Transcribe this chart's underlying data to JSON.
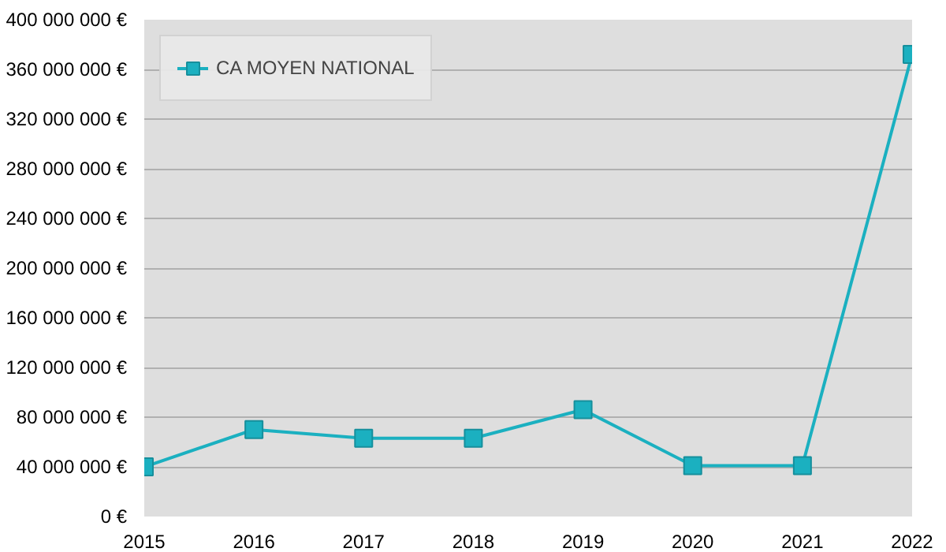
{
  "chart_data": {
    "type": "line",
    "x": [
      2015,
      2016,
      2017,
      2018,
      2019,
      2020,
      2021,
      2022
    ],
    "series": [
      {
        "name": "CA MOYEN NATIONAL",
        "color": "#1bb0c0",
        "values": [
          40000000,
          70000000,
          63000000,
          63000000,
          86000000,
          41000000,
          41000000,
          372000000
        ]
      }
    ],
    "xlim": [
      2015,
      2022
    ],
    "xticks": [
      2015,
      2016,
      2017,
      2018,
      2019,
      2020,
      2021,
      2022
    ],
    "ylim": [
      0,
      400000000
    ],
    "yticks": [
      {
        "value": 0,
        "label": "0 €"
      },
      {
        "value": 40000000,
        "label": "40 000 000 €"
      },
      {
        "value": 80000000,
        "label": "80 000 000 €"
      },
      {
        "value": 120000000,
        "label": "120 000 000 €"
      },
      {
        "value": 160000000,
        "label": "160 000 000 €"
      },
      {
        "value": 200000000,
        "label": "200 000 000 €"
      },
      {
        "value": 240000000,
        "label": "240 000 000 €"
      },
      {
        "value": 280000000,
        "label": "280 000 000 €"
      },
      {
        "value": 320000000,
        "label": "320 000 000 €"
      },
      {
        "value": 360000000,
        "label": "360 000 000 €"
      },
      {
        "value": 400000000,
        "label": "400 000 000 €"
      }
    ],
    "grid": "y",
    "legend": "top left",
    "marker": "square",
    "line_style": "solid"
  }
}
